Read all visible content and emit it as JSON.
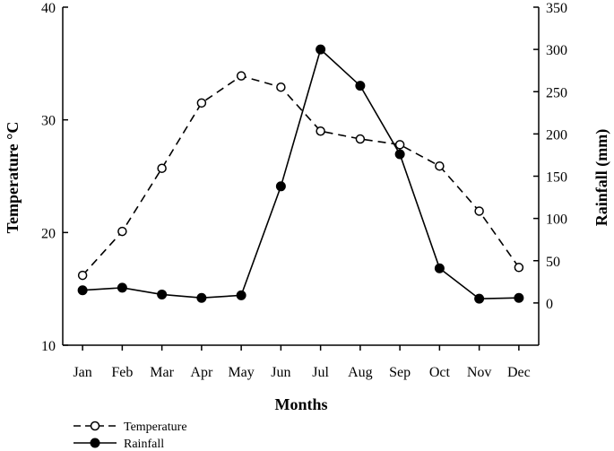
{
  "chart_data": {
    "type": "line",
    "categories": [
      "Jan",
      "Feb",
      "Mar",
      "Apr",
      "May",
      "Jun",
      "Jul",
      "Aug",
      "Sep",
      "Oct",
      "Nov",
      "Dec"
    ],
    "xlabel": "Months",
    "ylabel_left": "Temperature °C",
    "ylabel_right": "Rainfall (mm)",
    "ylim_left": [
      10,
      40
    ],
    "yticks_left": [
      10,
      20,
      30,
      40
    ],
    "ylim_right": [
      -50,
      350
    ],
    "yticks_right": [
      0,
      50,
      100,
      150,
      200,
      250,
      300,
      350
    ],
    "grid": false,
    "legend_position": "bottom-left",
    "series": [
      {
        "name": "Temperature",
        "axis": "left",
        "style": "dashed",
        "marker": "open-circle",
        "values": [
          16.2,
          20.1,
          25.7,
          31.5,
          33.9,
          32.9,
          29.0,
          28.3,
          27.8,
          25.9,
          21.9,
          16.9
        ]
      },
      {
        "name": "Rainfall",
        "axis": "right",
        "style": "solid",
        "marker": "filled-circle",
        "values": [
          15,
          18,
          10,
          6,
          9,
          138,
          300,
          257,
          176,
          41,
          5,
          6
        ]
      }
    ]
  }
}
